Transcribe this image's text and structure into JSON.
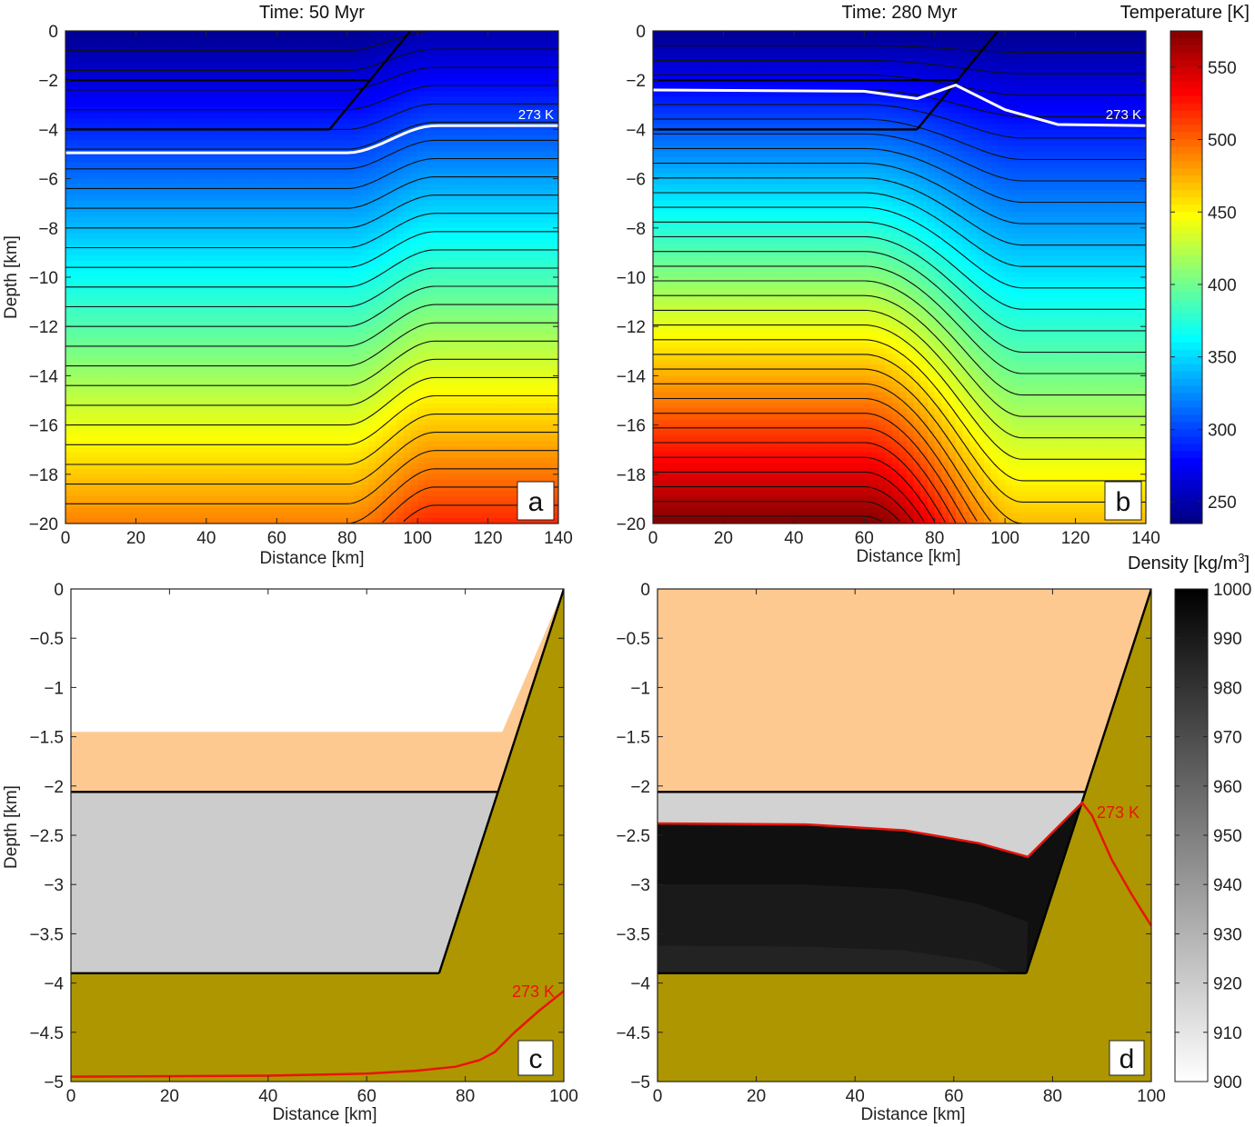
{
  "chart_data": [
    {
      "id": "a",
      "type": "heatmap",
      "title": "Time: 50 Myr",
      "panel_label": "a",
      "xlabel": "Distance [km]",
      "ylabel": "Depth [km]",
      "xlim": [
        0,
        140
      ],
      "ylim": [
        -20,
        0
      ],
      "xticks": [
        "0",
        "20",
        "40",
        "60",
        "80",
        "100",
        "120",
        "140"
      ],
      "yticks": [
        "0",
        "−2",
        "−4",
        "−6",
        "−8",
        "−10",
        "−12",
        "−14",
        "−16",
        "−18",
        "−20"
      ],
      "colorbar": "temperature",
      "field": {
        "surface_T_left": 240,
        "surface_T_right": 250,
        "bottom_T_left": 490,
        "bottom_T_right": 520,
        "transition_x": [
          80,
          105
        ]
      },
      "contour_interval_K": 10,
      "isotherm": {
        "label": "273 K",
        "left_depth": -4.95,
        "right_depth": -3.85,
        "transition_x": [
          80,
          105
        ]
      },
      "boundaries": [
        {
          "name": "layer-top",
          "points": [
            [
              0,
              -2
            ],
            [
              87,
              -2
            ]
          ]
        },
        {
          "name": "layer-base",
          "points": [
            [
              0,
              -4
            ],
            [
              75,
              -4
            ]
          ]
        },
        {
          "name": "slope",
          "points": [
            [
              75,
              -4
            ],
            [
              98,
              0
            ]
          ]
        }
      ]
    },
    {
      "id": "b",
      "type": "heatmap",
      "title": "Time: 280 Myr",
      "panel_label": "b",
      "xlabel": "Distance [km]",
      "ylabel": "",
      "xlim": [
        0,
        140
      ],
      "ylim": [
        -20,
        0
      ],
      "xticks": [
        "0",
        "20",
        "40",
        "60",
        "80",
        "100",
        "120",
        "140"
      ],
      "yticks": [
        "0",
        "−2",
        "−4",
        "−6",
        "−8",
        "−10",
        "−12",
        "−14",
        "−16",
        "−18",
        "−20"
      ],
      "colorbar": "temperature",
      "field": {
        "surface_T_left": 240,
        "surface_T_right": 240,
        "bottom_T_left": 575,
        "bottom_T_right": 470,
        "transition_x": [
          60,
          105
        ]
      },
      "contour_interval_K": 10,
      "isotherm": {
        "label": "273 K",
        "points": [
          [
            0,
            -2.4
          ],
          [
            60,
            -2.45
          ],
          [
            75,
            -2.75
          ],
          [
            86,
            -2.2
          ],
          [
            100,
            -3.2
          ],
          [
            115,
            -3.8
          ],
          [
            140,
            -3.85
          ]
        ]
      },
      "boundaries": [
        {
          "name": "layer-top",
          "points": [
            [
              0,
              -2
            ],
            [
              87,
              -2
            ]
          ]
        },
        {
          "name": "layer-base",
          "points": [
            [
              0,
              -4
            ],
            [
              75,
              -4
            ]
          ]
        },
        {
          "name": "slope",
          "points": [
            [
              75,
              -4
            ],
            [
              98,
              0
            ]
          ]
        }
      ]
    },
    {
      "id": "c",
      "type": "area",
      "title": "",
      "panel_label": "c",
      "xlabel": "Distance [km]",
      "ylabel": "Depth [km]",
      "xlim": [
        0,
        100
      ],
      "ylim": [
        -5,
        0
      ],
      "xticks": [
        "0",
        "20",
        "40",
        "60",
        "80",
        "100"
      ],
      "yticks": [
        "0",
        "−0.5",
        "−1",
        "−1.5",
        "−2",
        "−2.5",
        "−3",
        "−3.5",
        "−4",
        "−4.5",
        "−5"
      ],
      "regions": [
        {
          "name": "air",
          "color": "#ffffff",
          "points": [
            [
              0,
              0
            ],
            [
              100,
              0
            ],
            [
              87.5,
              -1.45
            ],
            [
              0,
              -1.45
            ]
          ]
        },
        {
          "name": "upper-layer",
          "color": "#fec991",
          "points": [
            [
              0,
              -1.45
            ],
            [
              87.5,
              -1.45
            ],
            [
              100,
              0
            ],
            [
              86.5,
              -2.06
            ],
            [
              0,
              -2.06
            ]
          ]
        },
        {
          "name": "ice-layer",
          "color": "#cccccc",
          "points": [
            [
              0,
              -2.06
            ],
            [
              86.5,
              -2.06
            ],
            [
              74.7,
              -3.9
            ],
            [
              0,
              -3.9
            ]
          ]
        },
        {
          "name": "basement",
          "color": "#ae9600",
          "points": [
            [
              0,
              -3.9
            ],
            [
              74.7,
              -3.9
            ],
            [
              100,
              0
            ],
            [
              100,
              -5
            ],
            [
              0,
              -5
            ]
          ]
        }
      ],
      "boundaries": [
        {
          "name": "layer-top",
          "points": [
            [
              0,
              -2.06
            ],
            [
              86.5,
              -2.06
            ]
          ]
        },
        {
          "name": "layer-base",
          "points": [
            [
              0,
              -3.9
            ],
            [
              74.7,
              -3.9
            ]
          ]
        },
        {
          "name": "slope",
          "points": [
            [
              74.7,
              -3.9
            ],
            [
              100,
              0
            ]
          ]
        }
      ],
      "isotherm": {
        "label": "273 K",
        "color": "#e8140a",
        "points": [
          [
            0,
            -4.95
          ],
          [
            40,
            -4.94
          ],
          [
            60,
            -4.92
          ],
          [
            70,
            -4.89
          ],
          [
            78,
            -4.85
          ],
          [
            83,
            -4.78
          ],
          [
            86,
            -4.7
          ],
          [
            90,
            -4.5
          ],
          [
            95,
            -4.28
          ],
          [
            100,
            -4.08
          ]
        ]
      }
    },
    {
      "id": "d",
      "type": "area",
      "title": "",
      "panel_label": "d",
      "xlabel": "Distance [km]",
      "ylabel": "",
      "xlim": [
        0,
        100
      ],
      "ylim": [
        -5,
        0
      ],
      "xticks": [
        "0",
        "20",
        "40",
        "60",
        "80",
        "100"
      ],
      "yticks": [
        "0",
        "−0.5",
        "−1",
        "−1.5",
        "−2",
        "−2.5",
        "−3",
        "−3.5",
        "−4",
        "−4.5",
        "−5"
      ],
      "colorbar": "density",
      "regions": [
        {
          "name": "upper-layer",
          "color": "#fec991",
          "points": [
            [
              0,
              0
            ],
            [
              100,
              0
            ],
            [
              86.5,
              -2.06
            ],
            [
              0,
              -2.06
            ]
          ]
        },
        {
          "name": "ice-light",
          "color": "#d2d2d2",
          "points": [
            [
              0,
              -2.06
            ],
            [
              86.5,
              -2.06
            ],
            [
              74.7,
              -3.9
            ],
            [
              0,
              -3.9
            ]
          ]
        },
        {
          "name": "ice-dense",
          "color": "#101010",
          "points": [
            [
              0,
              -2.38
            ],
            [
              30,
              -2.39
            ],
            [
              50,
              -2.45
            ],
            [
              65,
              -2.58
            ],
            [
              75,
              -2.72
            ],
            [
              86,
              -2.17
            ],
            [
              74.7,
              -3.9
            ],
            [
              0,
              -3.9
            ]
          ]
        },
        {
          "name": "ice-dense-2",
          "color": "#1a1a1a",
          "points": [
            [
              0,
              -3.0
            ],
            [
              30,
              -3.0
            ],
            [
              50,
              -3.05
            ],
            [
              65,
              -3.2
            ],
            [
              75,
              -3.38
            ],
            [
              74.7,
              -3.9
            ],
            [
              0,
              -3.9
            ]
          ]
        },
        {
          "name": "ice-dense-3",
          "color": "#232323",
          "points": [
            [
              0,
              -3.62
            ],
            [
              30,
              -3.63
            ],
            [
              50,
              -3.67
            ],
            [
              65,
              -3.78
            ],
            [
              72,
              -3.9
            ],
            [
              0,
              -3.9
            ]
          ]
        },
        {
          "name": "basement",
          "color": "#ae9600",
          "points": [
            [
              0,
              -3.9
            ],
            [
              74.7,
              -3.9
            ],
            [
              100,
              0
            ],
            [
              100,
              -5
            ],
            [
              0,
              -5
            ]
          ]
        }
      ],
      "boundaries": [
        {
          "name": "layer-top",
          "points": [
            [
              0,
              -2.06
            ],
            [
              86.5,
              -2.06
            ]
          ]
        },
        {
          "name": "layer-base",
          "points": [
            [
              0,
              -3.9
            ],
            [
              74.7,
              -3.9
            ]
          ]
        },
        {
          "name": "slope",
          "points": [
            [
              74.7,
              -3.9
            ],
            [
              100,
              0
            ]
          ]
        }
      ],
      "isotherm": {
        "label": "273 K",
        "color": "#e8140a",
        "points": [
          [
            0,
            -2.38
          ],
          [
            30,
            -2.39
          ],
          [
            50,
            -2.45
          ],
          [
            65,
            -2.58
          ],
          [
            75,
            -2.72
          ],
          [
            86,
            -2.17
          ],
          [
            88,
            -2.3
          ],
          [
            92,
            -2.75
          ],
          [
            96,
            -3.1
          ],
          [
            100,
            -3.42
          ]
        ]
      }
    }
  ],
  "colorbars": {
    "temperature": {
      "label": "Temperature [K]",
      "range": [
        235,
        575
      ],
      "ticks": [
        "250",
        "300",
        "350",
        "400",
        "450",
        "500",
        "550"
      ],
      "colormap": "jet"
    },
    "density": {
      "label_main": "Density [kg/m",
      "label_sup": "3",
      "label_end": "]",
      "range": [
        900,
        1000
      ],
      "ticks": [
        "900",
        "910",
        "920",
        "930",
        "940",
        "950",
        "960",
        "970",
        "980",
        "990",
        "1000"
      ],
      "colormap": "gray-reversed"
    }
  }
}
